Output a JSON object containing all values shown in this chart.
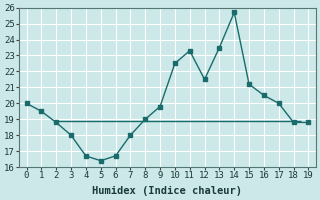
{
  "x": [
    0,
    1,
    2,
    3,
    4,
    5,
    6,
    7,
    8,
    9,
    10,
    11,
    12,
    13,
    14,
    15,
    16,
    17,
    18,
    19
  ],
  "y_curve": [
    20.0,
    19.5,
    18.8,
    18.0,
    16.7,
    16.4,
    16.7,
    18.0,
    19.0,
    19.8,
    22.5,
    23.3,
    21.5,
    23.5,
    25.7,
    21.2,
    20.5,
    20.0,
    18.8,
    18.8
  ],
  "hline_x_start": 2,
  "hline_x_end": 18.5,
  "hline_y": 18.9,
  "curve_color": "#1a6b6b",
  "hline_color": "#1a6b6b",
  "bg_color": "#cce8e8",
  "grid_color": "#b0d4d4",
  "xlabel": "Humidex (Indice chaleur)",
  "ylim": [
    16,
    26
  ],
  "xlim": [
    -0.5,
    19.5
  ],
  "yticks": [
    16,
    17,
    18,
    19,
    20,
    21,
    22,
    23,
    24,
    25,
    26
  ],
  "xticks": [
    0,
    1,
    2,
    3,
    4,
    5,
    6,
    7,
    8,
    9,
    10,
    11,
    12,
    13,
    14,
    15,
    16,
    17,
    18,
    19
  ],
  "marker_size": 3,
  "linewidth": 1.0,
  "xlabel_fontsize": 7.5,
  "tick_fontsize": 6.5
}
